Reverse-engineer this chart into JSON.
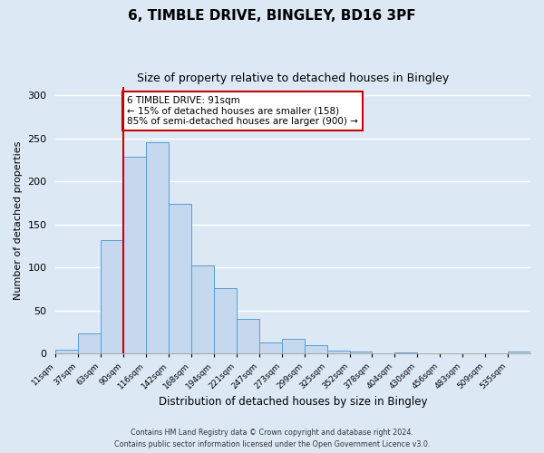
{
  "title": "6, TIMBLE DRIVE, BINGLEY, BD16 3PF",
  "subtitle": "Size of property relative to detached houses in Bingley",
  "xlabel": "Distribution of detached houses by size in Bingley",
  "ylabel": "Number of detached properties",
  "bin_labels": [
    "11sqm",
    "37sqm",
    "63sqm",
    "90sqm",
    "116sqm",
    "142sqm",
    "168sqm",
    "194sqm",
    "221sqm",
    "247sqm",
    "273sqm",
    "299sqm",
    "325sqm",
    "352sqm",
    "378sqm",
    "404sqm",
    "430sqm",
    "456sqm",
    "483sqm",
    "509sqm",
    "535sqm"
  ],
  "bar_values": [
    5,
    23,
    132,
    229,
    245,
    174,
    102,
    76,
    40,
    13,
    17,
    10,
    4,
    2,
    0,
    1,
    0,
    0,
    0,
    0,
    2
  ],
  "bar_color": "#c5d8ed",
  "bar_edgecolor": "#5b9bd5",
  "vline_x": 3,
  "vline_color": "#cc0000",
  "annotation_title": "6 TIMBLE DRIVE: 91sqm",
  "annotation_line1": "← 15% of detached houses are smaller (158)",
  "annotation_line2": "85% of semi-detached houses are larger (900) →",
  "annotation_box_edgecolor": "#cc0000",
  "ylim": [
    0,
    310
  ],
  "yticks": [
    0,
    50,
    100,
    150,
    200,
    250,
    300
  ],
  "footer1": "Contains HM Land Registry data © Crown copyright and database right 2024.",
  "footer2": "Contains public sector information licensed under the Open Government Licence v3.0.",
  "bg_color": "#dce9f5",
  "plot_bg_color": "#dce9f5"
}
